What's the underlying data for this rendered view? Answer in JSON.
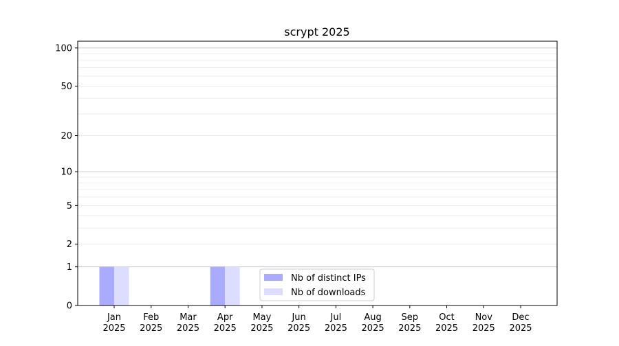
{
  "chart_data": {
    "type": "bar",
    "title": "scrypt 2025",
    "xlabel": "",
    "ylabel": "",
    "yscale": "log10(1+y)",
    "ylim": [
      0,
      113
    ],
    "yticks": [
      0,
      1,
      2,
      5,
      10,
      20,
      50,
      100
    ],
    "grid": true,
    "legend_position": "bottom-center",
    "categories": [
      "Jan\n2025",
      "Feb\n2025",
      "Mar\n2025",
      "Apr\n2025",
      "May\n2025",
      "Jun\n2025",
      "Jul\n2025",
      "Aug\n2025",
      "Sep\n2025",
      "Oct\n2025",
      "Nov\n2025",
      "Dec\n2025"
    ],
    "series": [
      {
        "name": "Nb of distinct IPs",
        "color": "#aaaaff",
        "values": [
          1,
          0,
          0,
          1,
          0,
          0,
          0,
          0,
          0,
          0,
          0,
          0
        ]
      },
      {
        "name": "Nb of downloads",
        "color": "#ddddff",
        "values": [
          1,
          0,
          0,
          1,
          0,
          0,
          0,
          0,
          0,
          0,
          0,
          0
        ]
      }
    ]
  }
}
